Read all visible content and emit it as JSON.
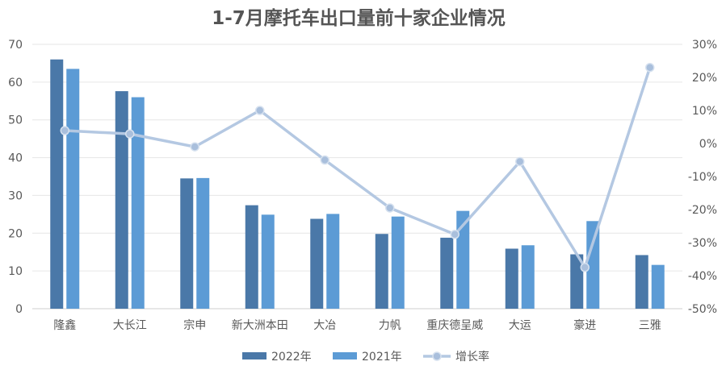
{
  "chart_data": {
    "type": "bar",
    "title": "1-7月摩托车出口量前十家企业情况",
    "categories": [
      "隆鑫",
      "大长江",
      "宗申",
      "新大洲本田",
      "大冶",
      "力帆",
      "重庆德呈威",
      "大运",
      "豪进",
      "三雅"
    ],
    "series": [
      {
        "name": "2022年",
        "type": "bar",
        "axis": "left",
        "color": "#4a78a8",
        "values": [
          66,
          57.6,
          34.5,
          27.4,
          23.8,
          19.8,
          18.8,
          15.9,
          14.4,
          14.2
        ]
      },
      {
        "name": "2021年",
        "type": "bar",
        "axis": "left",
        "color": "#5c9bd5",
        "values": [
          63.5,
          56,
          34.6,
          24.9,
          25.1,
          24.4,
          25.9,
          16.8,
          23.2,
          11.6
        ]
      },
      {
        "name": "增长率",
        "type": "line",
        "axis": "right",
        "color": "#b4c8e2",
        "values": [
          3.9,
          2.9,
          -1.0,
          10.0,
          -5.0,
          -19.5,
          -27.5,
          -5.5,
          -37.5,
          23.0
        ]
      }
    ],
    "y_left": {
      "min": 0,
      "max": 70,
      "step": 10,
      "ticks": [
        "0",
        "10",
        "20",
        "30",
        "40",
        "50",
        "60",
        "70"
      ]
    },
    "y_right": {
      "min": -50,
      "max": 30,
      "step": 10,
      "ticks": [
        "-50%",
        "-40%",
        "-30%",
        "-20%",
        "-10%",
        "0%",
        "10%",
        "20%",
        "30%"
      ]
    },
    "grid": true,
    "legend_position": "bottom"
  }
}
